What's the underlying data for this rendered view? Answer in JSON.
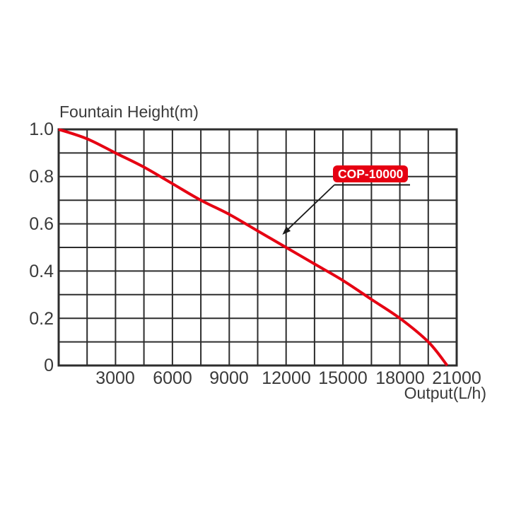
{
  "page": {
    "background": "#ffffff"
  },
  "chart_data": {
    "type": "line",
    "title": "Fountain Height(m)",
    "xlabel": "Output(L/h)",
    "ylabel": "Fountain Height(m)",
    "xlim": [
      0,
      21000
    ],
    "ylim": [
      0,
      1.0
    ],
    "grid": {
      "visible": true,
      "x_step": 1500,
      "y_step": 0.1
    },
    "x_tick_values": [
      3000,
      6000,
      9000,
      12000,
      15000,
      18000,
      21000
    ],
    "x_tick_labels": [
      "3000",
      "6000",
      "9000",
      "12000",
      "15000",
      "18000",
      "21000"
    ],
    "y_tick_values": [
      1.0,
      0.8,
      0.6,
      0.4,
      0.2,
      0
    ],
    "y_tick_labels": [
      "1.0",
      "0.8",
      "0.6",
      "0.4",
      "0.2",
      "0"
    ],
    "series": [
      {
        "name": "COP-10000",
        "color": "#e60012",
        "x": [
          0,
          1500,
          3000,
          4500,
          6000,
          7500,
          9000,
          10500,
          12000,
          13500,
          15000,
          16500,
          18000,
          19500,
          20500
        ],
        "y": [
          1.0,
          0.96,
          0.9,
          0.84,
          0.77,
          0.7,
          0.64,
          0.57,
          0.5,
          0.43,
          0.36,
          0.28,
          0.2,
          0.1,
          0.0
        ]
      }
    ],
    "annotation": {
      "label": "COP-10000",
      "box_color": "#e60012",
      "text_color": "#ffffff",
      "arrow_target": {
        "x": 11800,
        "y": 0.545
      }
    },
    "colors": {
      "grid": "#2d2d2d",
      "border": "#2d2d2d",
      "text": "#3a3a3a",
      "curve": "#e60012",
      "leader": "#1a1a1a"
    }
  }
}
